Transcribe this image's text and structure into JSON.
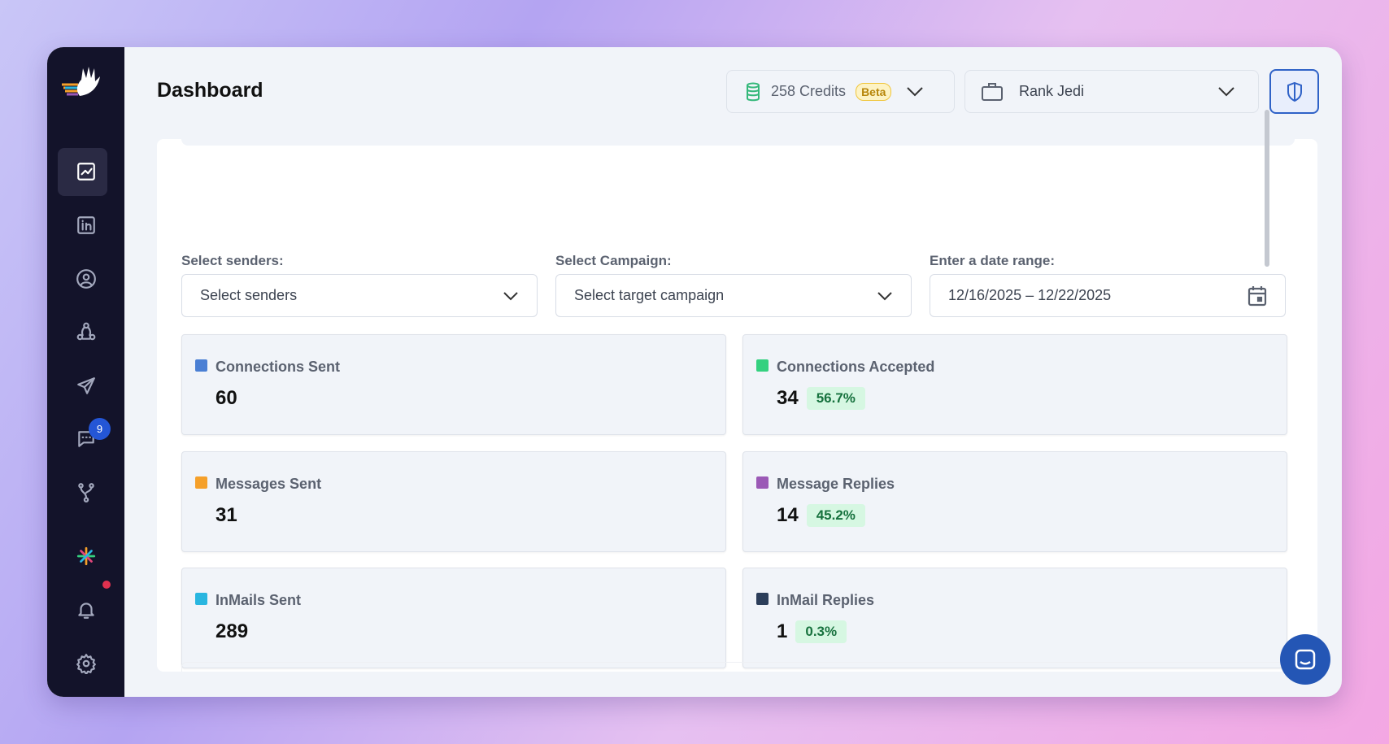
{
  "header": {
    "title": "Dashboard",
    "credits": "258 Credits",
    "credits_badge": "Beta",
    "workspace": "Rank Jedi"
  },
  "sidebar": {
    "messages_badge": "9"
  },
  "filters": [
    {
      "label": "Select senders:",
      "value": "Select senders"
    },
    {
      "label": "Select Campaign:",
      "value": "Select target campaign"
    },
    {
      "label": "Enter a date range:",
      "value": "12/16/2025 – 12/22/2025"
    }
  ],
  "stats": [
    {
      "name": "Connections Sent",
      "value": "60",
      "color": "#4a7fd4"
    },
    {
      "name": "Connections Accepted",
      "value": "34",
      "percent": "56.7%",
      "color": "#34d17f"
    },
    {
      "name": "Messages Sent",
      "value": "31",
      "color": "#f5a02a"
    },
    {
      "name": "Message Replies",
      "value": "14",
      "percent": "45.2%",
      "color": "#9b59b6"
    },
    {
      "name": "InMails Sent",
      "value": "289",
      "color": "#29b6e0"
    },
    {
      "name": "InMail Replies",
      "value": "1",
      "percent": "0.3%",
      "color": "#2c3e5a"
    }
  ]
}
